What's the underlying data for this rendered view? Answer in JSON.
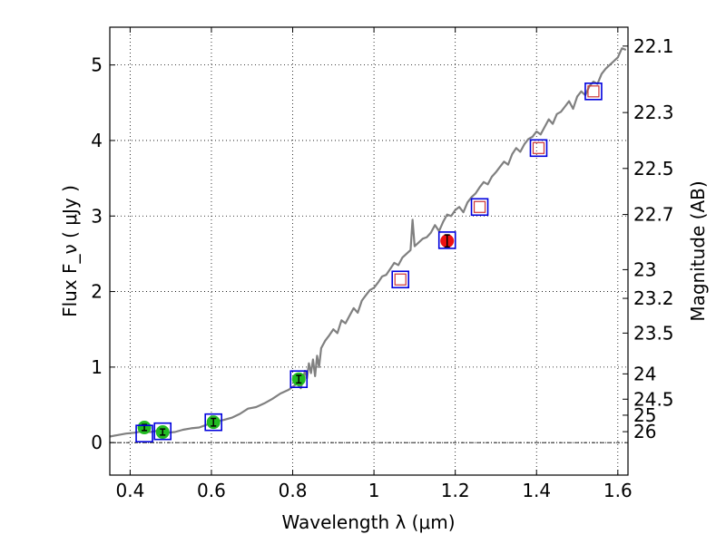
{
  "chart_data": {
    "type": "scatter",
    "xlabel": "Wavelength  λ (μm)",
    "ylabel": "Flux  F_ν  ( μJy )",
    "y2label": "Magnitude (AB)",
    "xlim": [
      0.35,
      1.625
    ],
    "ylim": [
      -0.43,
      5.5
    ],
    "x_ticks": [
      0.4,
      0.6,
      0.8,
      1.0,
      1.2,
      1.4,
      1.6
    ],
    "x_tick_labels": [
      "0.4",
      "0.6",
      "0.8",
      "1",
      "1.2",
      "1.4",
      "1.6"
    ],
    "y_ticks": [
      0,
      1,
      2,
      3,
      4,
      5
    ],
    "y_tick_labels": [
      "0",
      "1",
      "2",
      "3",
      "4",
      "5"
    ],
    "y2_ticks": [
      {
        "label": "22.1",
        "flux": 5.25
      },
      {
        "label": "22.3",
        "flux": 4.37
      },
      {
        "label": "22.5",
        "flux": 3.63
      },
      {
        "label": "22.7",
        "flux": 3.02
      },
      {
        "label": "23",
        "flux": 2.29
      },
      {
        "label": "23.2",
        "flux": 1.91
      },
      {
        "label": "23.5",
        "flux": 1.45
      },
      {
        "label": "24",
        "flux": 0.91
      },
      {
        "label": "24.5",
        "flux": 0.575
      },
      {
        "label": "25",
        "flux": 0.363
      },
      {
        "label": "26",
        "flux": 0.145
      }
    ],
    "grid": true,
    "zero_line": true,
    "colors": {
      "model": "#808080",
      "green_point": "#22bb22",
      "red_point": "#ee1111",
      "model_box": "#0000dd",
      "red_box": "#cc3333",
      "grid": "#000000"
    },
    "series": [
      {
        "name": "model spectrum",
        "style": "line",
        "x": [
          0.35,
          0.37,
          0.39,
          0.41,
          0.43,
          0.45,
          0.47,
          0.49,
          0.51,
          0.53,
          0.55,
          0.57,
          0.59,
          0.61,
          0.63,
          0.65,
          0.67,
          0.69,
          0.71,
          0.73,
          0.75,
          0.77,
          0.79,
          0.81,
          0.82,
          0.83,
          0.835,
          0.84,
          0.845,
          0.85,
          0.855,
          0.86,
          0.865,
          0.87,
          0.88,
          0.89,
          0.9,
          0.91,
          0.92,
          0.93,
          0.94,
          0.95,
          0.96,
          0.97,
          0.98,
          0.99,
          1.0,
          1.01,
          1.02,
          1.03,
          1.04,
          1.05,
          1.06,
          1.07,
          1.08,
          1.09,
          1.095,
          1.1,
          1.11,
          1.12,
          1.13,
          1.14,
          1.15,
          1.16,
          1.17,
          1.18,
          1.19,
          1.2,
          1.21,
          1.22,
          1.23,
          1.24,
          1.25,
          1.26,
          1.27,
          1.28,
          1.29,
          1.3,
          1.31,
          1.32,
          1.33,
          1.34,
          1.35,
          1.36,
          1.37,
          1.38,
          1.39,
          1.4,
          1.41,
          1.42,
          1.43,
          1.44,
          1.45,
          1.46,
          1.47,
          1.48,
          1.49,
          1.5,
          1.51,
          1.52,
          1.53,
          1.54,
          1.55,
          1.56,
          1.57,
          1.58,
          1.59,
          1.6,
          1.61,
          1.62
        ],
        "y": [
          0.08,
          0.1,
          0.12,
          0.13,
          0.15,
          0.14,
          0.16,
          0.13,
          0.14,
          0.17,
          0.19,
          0.2,
          0.24,
          0.28,
          0.3,
          0.33,
          0.38,
          0.45,
          0.47,
          0.52,
          0.58,
          0.65,
          0.7,
          0.78,
          0.72,
          0.95,
          0.85,
          1.05,
          0.92,
          1.1,
          0.88,
          1.15,
          1.0,
          1.25,
          1.35,
          1.42,
          1.5,
          1.45,
          1.62,
          1.58,
          1.68,
          1.78,
          1.72,
          1.88,
          1.95,
          2.02,
          2.05,
          2.12,
          2.2,
          2.22,
          2.3,
          2.38,
          2.35,
          2.45,
          2.5,
          2.55,
          2.95,
          2.6,
          2.65,
          2.7,
          2.72,
          2.78,
          2.88,
          2.8,
          2.92,
          3.02,
          3.0,
          3.08,
          3.12,
          3.05,
          3.18,
          3.25,
          3.3,
          3.38,
          3.45,
          3.42,
          3.52,
          3.58,
          3.65,
          3.72,
          3.68,
          3.82,
          3.9,
          3.85,
          3.95,
          4.02,
          4.05,
          4.12,
          4.08,
          4.18,
          4.28,
          4.22,
          4.35,
          4.38,
          4.45,
          4.52,
          4.42,
          4.58,
          4.65,
          4.6,
          4.72,
          4.78,
          4.75,
          4.88,
          4.95,
          5.0,
          5.05,
          5.1,
          5.22,
          5.2
        ]
      },
      {
        "name": "observed photometry (green)",
        "style": "points",
        "x": [
          0.435,
          0.48,
          0.605,
          0.815
        ],
        "y": [
          0.2,
          0.14,
          0.27,
          0.84
        ],
        "yerr": [
          0.04,
          0.04,
          0.05,
          0.05
        ]
      },
      {
        "name": "observed photometry (red)",
        "style": "points",
        "x": [
          1.18
        ],
        "y": [
          2.67
        ],
        "yerr": [
          0.08
        ]
      },
      {
        "name": "model fluxes (blue squares)",
        "style": "squares",
        "x": [
          0.435,
          0.48,
          0.605,
          0.815,
          1.065,
          1.18,
          1.26,
          1.405,
          1.54
        ],
        "y": [
          0.12,
          0.15,
          0.27,
          0.84,
          2.16,
          2.68,
          3.12,
          3.9,
          4.65
        ]
      },
      {
        "name": "upper limits (red squares)",
        "style": "squares",
        "x": [
          1.065,
          1.26,
          1.405,
          1.54
        ],
        "y": [
          2.16,
          3.12,
          3.9,
          4.65
        ]
      }
    ]
  }
}
